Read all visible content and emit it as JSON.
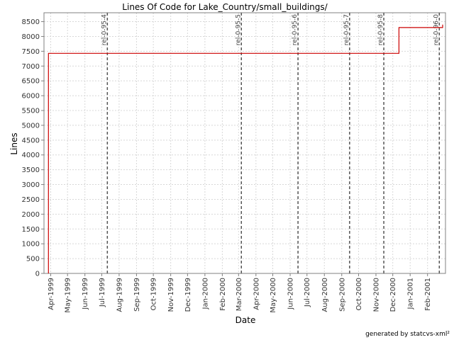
{
  "colors": {
    "background": "#ffffff",
    "plot_border": "#808080",
    "gridline": "#d8d8d8",
    "series": "#cc0000",
    "marker_line": "#555555"
  },
  "footer": {
    "credit": "generated by statcvs-xml²"
  },
  "chart_data": {
    "type": "line",
    "title": "Lines Of Code for Lake_Country/small_buildings/",
    "xlabel": "Date",
    "ylabel": "Lines",
    "ylim": [
      0,
      8800
    ],
    "xlim": [
      "1999-03-20",
      "2001-03-05"
    ],
    "grid": true,
    "step": true,
    "x_ticks": [
      "Apr-1999",
      "May-1999",
      "Jun-1999",
      "Jul-1999",
      "Aug-1999",
      "Sep-1999",
      "Oct-1999",
      "Nov-1999",
      "Dec-1999",
      "Jan-2000",
      "Feb-2000",
      "Mar-2000",
      "Apr-2000",
      "May-2000",
      "Jun-2000",
      "Jul-2000",
      "Aug-2000",
      "Sep-2000",
      "Oct-2000",
      "Nov-2000",
      "Dec-2000",
      "Jan-2001",
      "Feb-2001"
    ],
    "y_ticks": [
      0,
      500,
      1000,
      1500,
      2000,
      2500,
      3000,
      3500,
      4000,
      4500,
      5000,
      5500,
      6000,
      6500,
      7000,
      7500,
      8000,
      8500
    ],
    "series": [
      {
        "x": [
          "1999-03-28",
          "1999-03-28",
          "2000-12-12",
          "2000-12-12",
          "2001-02-28",
          "2001-02-28"
        ],
        "y": [
          0,
          7430,
          7430,
          8300,
          8300,
          8400
        ]
      }
    ],
    "markers": [
      {
        "label": "rel-0-95-4",
        "date": "1999-07-11"
      },
      {
        "label": "rel-0-95-5",
        "date": "2000-03-06"
      },
      {
        "label": "rel-0-95-6",
        "date": "2000-06-15"
      },
      {
        "label": "rel-0-95-7",
        "date": "2000-09-15"
      },
      {
        "label": "rel-0-95-8",
        "date": "2000-11-15"
      },
      {
        "label": "rel-0-96-0",
        "date": "2001-02-22"
      }
    ]
  }
}
